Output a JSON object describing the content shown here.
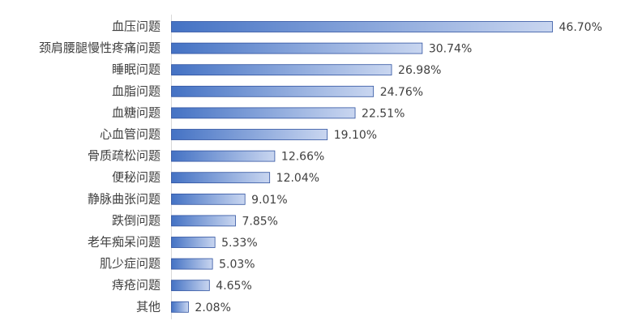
{
  "chart_data": {
    "type": "bar",
    "orientation": "horizontal",
    "color": "#4472c4",
    "categories": [
      "血压问题",
      "颈肩腰腿慢性疼痛问题",
      "睡眠问题",
      "血脂问题",
      "血糖问题",
      "心血管问题",
      "骨质疏松问题",
      "便秘问题",
      "静脉曲张问题",
      "跌倒问题",
      "老年痴呆问题",
      "肌少症问题",
      "痔疮问题",
      "其他"
    ],
    "values": [
      46.7,
      30.74,
      26.98,
      24.76,
      22.51,
      19.1,
      12.66,
      12.04,
      9.01,
      7.85,
      5.33,
      5.03,
      4.65,
      2.08
    ],
    "value_labels": [
      "46.70%",
      "30.74%",
      "26.98%",
      "24.76%",
      "22.51%",
      "19.10%",
      "12.66%",
      "12.04%",
      "9.01%",
      "7.85%",
      "5.33%",
      "5.03%",
      "4.65%",
      "2.08%"
    ]
  }
}
